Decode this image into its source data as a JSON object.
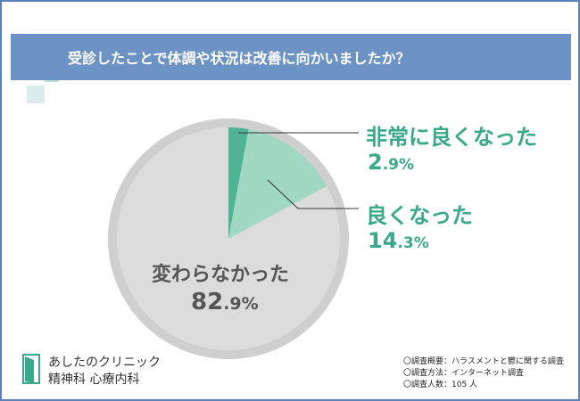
{
  "header": {
    "title": "受診したことで体調や状況は改善に向かいましたか？"
  },
  "chart_data": {
    "type": "pie",
    "title": "受診したことで体調や状況は改善に向かいましたか？",
    "slices": [
      {
        "label": "非常に良くなった",
        "value": 2.9,
        "display_int": "2",
        "display_dec": ".9%",
        "color": "#4fb394"
      },
      {
        "label": "良くなった",
        "value": 14.3,
        "display_int": "14",
        "display_dec": ".3%",
        "color": "#a0d8c3"
      },
      {
        "label": "変わらなかった",
        "value": 82.9,
        "display_int": "82",
        "display_dec": ".9%",
        "color": "#dcdcdc"
      }
    ],
    "start_angle_deg": 0,
    "direction": "clockwise"
  },
  "colors": {
    "border": "#5a82b8",
    "header": "#6d93c4",
    "accent": "#3aa98b",
    "ring": "#cfcfcf",
    "text_dark": "#555555"
  },
  "logo": {
    "name": "あしたのクリニック",
    "sub": "精神科 心療内科",
    "icon": "door-icon"
  },
  "notes": [
    "〇調査概要：ハラスメントと鬱に関する調査",
    "〇調査方法：インターネット調査",
    "〇調査人数：105 人"
  ]
}
